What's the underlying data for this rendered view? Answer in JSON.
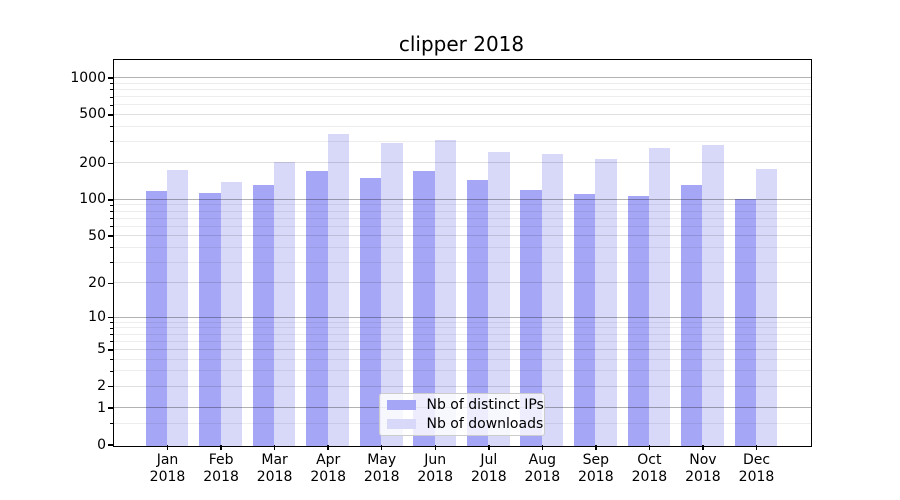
{
  "title": "clipper 2018",
  "chart_data": {
    "type": "bar",
    "title": "clipper 2018",
    "categories": [
      "Jan 2018",
      "Feb 2018",
      "Mar 2018",
      "Apr 2018",
      "May 2018",
      "Jun 2018",
      "Jul 2018",
      "Aug 2018",
      "Sep 2018",
      "Oct 2018",
      "Nov 2018",
      "Dec 2018"
    ],
    "series": [
      {
        "name": "Nb of distinct IPs",
        "color": "#a6a6f7",
        "values": [
          119,
          116,
          135,
          174,
          152,
          175,
          146,
          122,
          114,
          108,
          133,
          102
        ]
      },
      {
        "name": "Nb of downloads",
        "color": "#d8d8f9",
        "values": [
          177,
          143,
          209,
          352,
          299,
          313,
          250,
          241,
          221,
          272,
          288,
          180
        ]
      }
    ],
    "xlabel": "",
    "ylabel": "",
    "yscale": "log1p",
    "ylim": [
      0,
      1400
    ],
    "yticks": [
      0,
      1,
      2,
      5,
      10,
      20,
      50,
      100,
      200,
      500,
      1000
    ],
    "major_gridlines": [
      1,
      10,
      100,
      1000
    ],
    "sub_gridlines": [
      2,
      5,
      20,
      50,
      200,
      500
    ],
    "minor_gridlines": [
      0.5,
      3,
      4,
      6,
      7,
      8,
      9,
      30,
      40,
      60,
      70,
      80,
      90,
      300,
      400,
      600,
      700,
      800,
      900
    ],
    "grid": true,
    "legend_position": "inside lower-center"
  },
  "colors": {
    "background": "#ffffff",
    "axis": "#000000",
    "grid_major": "rgba(0,0,0,0.30)",
    "grid_sub": "rgba(0,0,0,0.12)",
    "grid_minor": "rgba(0,0,0,0.07)",
    "legend_border": "#cccccc"
  }
}
